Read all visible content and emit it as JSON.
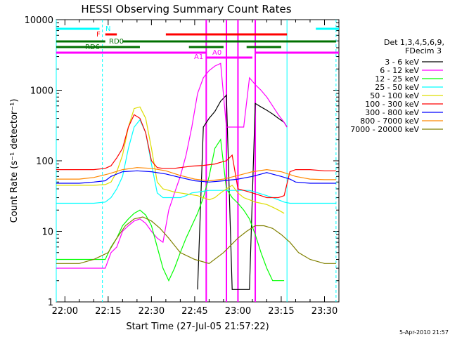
{
  "chart_data": {
    "type": "line",
    "title": "HESSI Observing Summary Count Rates",
    "xlabel": "Start Time (27-Jul-05 21:57:22)",
    "ylabel": "Count Rate (s⁻¹ detector⁻¹)",
    "y_scale": "log",
    "ylim": [
      1,
      10000
    ],
    "xlim": [
      "21:57",
      "23:35"
    ],
    "x_ticks": [
      "22:00",
      "22:15",
      "22:30",
      "22:45",
      "23:00",
      "23:15",
      "23:30"
    ],
    "y_ticks": [
      "1",
      "10",
      "100",
      "1000",
      "10000"
    ],
    "legend": {
      "placement": "right",
      "header": [
        "Det 1,3,4,5,6,9,",
        "FDecim 3"
      ]
    },
    "series": [
      {
        "name": "3 - 6 keV",
        "color": "#000000",
        "x": [
          "22:46",
          "22:48",
          "22:50",
          "22:52",
          "22:54",
          "22:56",
          "22:58",
          "23:00",
          "23:02",
          "23:04",
          "23:06",
          "23:08",
          "23:10",
          "23:12",
          "23:14",
          "23:16",
          "23:17"
        ],
        "y": [
          1.5,
          300,
          400,
          500,
          700,
          850,
          1.5,
          1.5,
          1.5,
          1.5,
          650,
          580,
          520,
          460,
          400,
          350,
          300
        ]
      },
      {
        "name": "6 - 12 keV",
        "color": "#ff00ff",
        "x": [
          "21:57",
          "22:05",
          "22:10",
          "22:14",
          "22:16",
          "22:18",
          "22:20",
          "22:22",
          "22:24",
          "22:26",
          "22:28",
          "22:30",
          "22:32",
          "22:34",
          "22:36",
          "22:38",
          "22:40",
          "22:42",
          "22:44",
          "22:46",
          "22:48",
          "22:50",
          "22:52",
          "22:54",
          "22:56",
          "22:58",
          "23:00",
          "23:02",
          "23:04",
          "23:06",
          "23:08",
          "23:10",
          "23:12",
          "23:14",
          "23:16",
          "23:17"
        ],
        "y": [
          3,
          3,
          3,
          3,
          5,
          6,
          10,
          12,
          14,
          15,
          13,
          10,
          8,
          7,
          20,
          35,
          60,
          120,
          300,
          900,
          1500,
          1900,
          2200,
          2400,
          300,
          300,
          300,
          300,
          1500,
          1200,
          1000,
          800,
          600,
          450,
          350,
          300
        ]
      },
      {
        "name": "12 - 25 keV",
        "color": "#00ff00",
        "x": [
          "21:57",
          "22:05",
          "22:10",
          "22:14",
          "22:16",
          "22:18",
          "22:20",
          "22:22",
          "22:24",
          "22:26",
          "22:28",
          "22:30",
          "22:32",
          "22:34",
          "22:36",
          "22:38",
          "22:40",
          "22:42",
          "22:44",
          "22:46",
          "22:48",
          "22:50",
          "22:52",
          "22:54",
          "22:56",
          "22:58",
          "23:00",
          "23:02",
          "23:04",
          "23:06",
          "23:08",
          "23:10",
          "23:12",
          "23:14",
          "23:16"
        ],
        "y": [
          4,
          4,
          4,
          4,
          6,
          8,
          12,
          15,
          18,
          20,
          17,
          12,
          6,
          3,
          2,
          3,
          5,
          8,
          12,
          18,
          30,
          60,
          150,
          200,
          40,
          30,
          25,
          20,
          15,
          9,
          5,
          3,
          2,
          2,
          2
        ]
      },
      {
        "name": "25 - 50 keV",
        "color": "#00ffff",
        "x": [
          "21:57",
          "22:05",
          "22:10",
          "22:14",
          "22:16",
          "22:18",
          "22:20",
          "22:22",
          "22:24",
          "22:26",
          "22:28",
          "22:30",
          "22:32",
          "22:34",
          "22:36",
          "22:38",
          "22:40",
          "22:42",
          "22:44",
          "22:46",
          "22:48",
          "22:50",
          "22:52",
          "22:54",
          "22:56",
          "22:58",
          "23:00",
          "23:02",
          "23:04",
          "23:06",
          "23:08",
          "23:10",
          "23:12",
          "23:14",
          "23:16",
          "23:18",
          "23:20",
          "23:25",
          "23:30",
          "23:34"
        ],
        "y": [
          25,
          25,
          25,
          26,
          30,
          40,
          60,
          150,
          300,
          380,
          250,
          90,
          35,
          30,
          30,
          30,
          30,
          32,
          35,
          36,
          37,
          38,
          38,
          38,
          38,
          38,
          38,
          38,
          38,
          36,
          34,
          32,
          30,
          28,
          26,
          25,
          25,
          25,
          25,
          25
        ]
      },
      {
        "name": "50 - 100 keV",
        "color": "#dddd00",
        "x": [
          "21:57",
          "22:05",
          "22:10",
          "22:14",
          "22:16",
          "22:18",
          "22:20",
          "22:22",
          "22:24",
          "22:26",
          "22:28",
          "22:30",
          "22:32",
          "22:34",
          "22:36",
          "22:38",
          "22:40",
          "22:42",
          "22:44",
          "22:46",
          "22:48",
          "22:50",
          "22:52",
          "22:54",
          "22:56",
          "22:58",
          "23:00",
          "23:02",
          "23:04",
          "23:06",
          "23:08",
          "23:10",
          "23:12",
          "23:14",
          "23:16"
        ],
        "y": [
          45,
          45,
          45,
          46,
          50,
          70,
          120,
          300,
          550,
          580,
          400,
          150,
          50,
          40,
          38,
          36,
          35,
          34,
          33,
          32,
          30,
          28,
          30,
          35,
          40,
          45,
          35,
          30,
          28,
          26,
          25,
          24,
          22,
          20,
          18
        ]
      },
      {
        "name": "100 - 300 keV",
        "color": "#ff0000",
        "x": [
          "21:57",
          "22:05",
          "22:10",
          "22:14",
          "22:16",
          "22:18",
          "22:20",
          "22:22",
          "22:24",
          "22:26",
          "22:28",
          "22:30",
          "22:32",
          "22:34",
          "22:36",
          "22:38",
          "22:40",
          "22:42",
          "22:44",
          "22:46",
          "22:48",
          "22:50",
          "22:52",
          "22:54",
          "22:56",
          "22:58",
          "23:00",
          "23:02",
          "23:04",
          "23:06",
          "23:08",
          "23:10",
          "23:12",
          "23:14",
          "23:16",
          "23:18",
          "23:20",
          "23:25",
          "23:30",
          "23:34"
        ],
        "y": [
          75,
          75,
          75,
          78,
          85,
          110,
          150,
          300,
          450,
          400,
          250,
          100,
          80,
          78,
          78,
          78,
          80,
          82,
          84,
          85,
          86,
          88,
          90,
          95,
          100,
          120,
          40,
          38,
          36,
          34,
          32,
          30,
          30,
          30,
          32,
          70,
          75,
          75,
          72,
          72
        ]
      },
      {
        "name": "300 - 800 keV",
        "color": "#0000ff",
        "x": [
          "21:57",
          "22:05",
          "22:10",
          "22:14",
          "22:16",
          "22:20",
          "22:25",
          "22:30",
          "22:35",
          "22:40",
          "22:45",
          "22:50",
          "22:55",
          "23:00",
          "23:05",
          "23:10",
          "23:15",
          "23:18",
          "23:20",
          "23:25",
          "23:30",
          "23:34"
        ],
        "y": [
          48,
          48,
          50,
          52,
          60,
          70,
          72,
          70,
          65,
          58,
          52,
          50,
          52,
          55,
          60,
          68,
          60,
          55,
          50,
          48,
          48,
          48
        ]
      },
      {
        "name": "800 - 7000 keV",
        "color": "#ff8800",
        "x": [
          "21:57",
          "22:05",
          "22:10",
          "22:15",
          "22:20",
          "22:25",
          "22:30",
          "22:35",
          "22:40",
          "22:45",
          "22:50",
          "22:55",
          "23:00",
          "23:05",
          "23:10",
          "23:15",
          "23:20",
          "23:25",
          "23:30",
          "23:34"
        ],
        "y": [
          55,
          55,
          58,
          65,
          75,
          80,
          78,
          72,
          62,
          55,
          52,
          55,
          62,
          70,
          75,
          70,
          60,
          55,
          54,
          54
        ]
      },
      {
        "name": "7000 - 20000 keV",
        "color": "#808000",
        "x": [
          "21:57",
          "22:05",
          "22:10",
          "22:15",
          "22:18",
          "22:21",
          "22:24",
          "22:27",
          "22:30",
          "22:33",
          "22:36",
          "22:40",
          "22:45",
          "22:50",
          "22:55",
          "23:00",
          "23:03",
          "23:06",
          "23:09",
          "23:12",
          "23:15",
          "23:18",
          "23:21",
          "23:25",
          "23:30",
          "23:34"
        ],
        "y": [
          3.5,
          3.5,
          4,
          5,
          8,
          12,
          15,
          16,
          14,
          11,
          8,
          5,
          4,
          3.5,
          5,
          8,
          10,
          12,
          12,
          11,
          9,
          7,
          5,
          4,
          3.5,
          3.5
        ]
      }
    ],
    "flag_bars": [
      {
        "label": "N",
        "color": "#00ffff",
        "segments": [
          [
            "21:57",
            "22:12"
          ],
          [
            "23:27",
            "23:35"
          ]
        ]
      },
      {
        "label": "F",
        "color": "#ff0000",
        "segments": [
          [
            "22:14",
            "22:18"
          ],
          [
            "22:35",
            "23:17"
          ]
        ]
      },
      {
        "label": "RD0",
        "color": "#007000",
        "segments": [
          [
            "21:57",
            "22:14"
          ],
          [
            "22:20",
            "23:34"
          ]
        ]
      },
      {
        "label": "RD6",
        "color": "#007000",
        "segments": [
          [
            "21:57",
            "22:26"
          ],
          [
            "22:43",
            "22:55"
          ],
          [
            "23:03",
            "23:15"
          ]
        ]
      },
      {
        "label": "A1",
        "color": "#ff00ff",
        "segments": [
          [
            "21:57",
            "22:49"
          ],
          [
            "23:06",
            "23:35"
          ]
        ]
      },
      {
        "label": "A0",
        "color": "#ff00ff",
        "segments": [
          [
            "22:49",
            "23:05"
          ]
        ]
      }
    ],
    "vertical_markers": [
      {
        "x": "21:57",
        "color": "#00ffff",
        "style": "solid"
      },
      {
        "x": "22:13",
        "color": "#00ffff",
        "style": "dashed"
      },
      {
        "x": "23:17",
        "color": "#00ffff",
        "style": "solid"
      },
      {
        "x": "23:34",
        "color": "#00ffff",
        "style": "dashed"
      },
      {
        "x": "22:49",
        "color": "#ff00ff",
        "style": "solid"
      },
      {
        "x": "22:56",
        "color": "#ff00ff",
        "style": "solid"
      },
      {
        "x": "23:00",
        "color": "#ff00ff",
        "style": "solid"
      },
      {
        "x": "23:06",
        "color": "#ff00ff",
        "style": "solid"
      }
    ]
  },
  "footer": {
    "timestamp": "5-Apr-2010 21:57"
  }
}
